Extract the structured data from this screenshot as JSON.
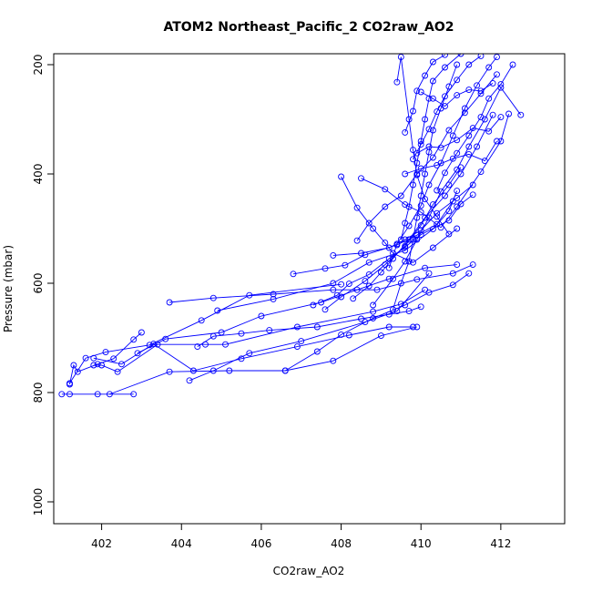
{
  "chart_data": {
    "type": "line",
    "title": "ATOM2 Northeast_Pacific_2 CO2raw_AO2",
    "xlabel": "CO2raw_AO2",
    "ylabel": "Pressure (mbar)",
    "xlim": [
      400.8,
      413.6
    ],
    "ylim": [
      1040,
      180
    ],
    "y_reversed": true,
    "xticks": [
      402,
      404,
      406,
      408,
      410,
      412
    ],
    "yticks": [
      200,
      400,
      600,
      800,
      1000
    ],
    "grid": false,
    "legend": "none",
    "marker": "open-circle",
    "colors": {
      "series": "#0000ff",
      "axis": "#000000",
      "background": "#ffffff"
    },
    "series": [
      {
        "points": [
          [
            401.0,
            803
          ],
          [
            401.2,
            803
          ],
          [
            401.9,
            803
          ],
          [
            402.8,
            803
          ]
        ]
      },
      {
        "points": [
          [
            401.2,
            785
          ],
          [
            401.3,
            750
          ],
          [
            401.4,
            762
          ],
          [
            401.9,
            748
          ],
          [
            402.3,
            738
          ],
          [
            402.8,
            703
          ],
          [
            403.0,
            690
          ]
        ]
      },
      {
        "points": [
          [
            401.2,
            783
          ],
          [
            401.6,
            737
          ],
          [
            402.1,
            726
          ],
          [
            403.2,
            713
          ],
          [
            404.5,
            668
          ],
          [
            405.7,
            622
          ],
          [
            408.0,
            602
          ]
        ]
      },
      {
        "points": [
          [
            401.8,
            750
          ],
          [
            402.0,
            750
          ],
          [
            402.4,
            762
          ],
          [
            403.4,
            712
          ],
          [
            404.6,
            712
          ],
          [
            405.1,
            712
          ],
          [
            406.9,
            680
          ],
          [
            408.8,
            652
          ],
          [
            409.5,
            638
          ],
          [
            410.1,
            612
          ]
        ]
      },
      {
        "points": [
          [
            401.8,
            737
          ],
          [
            402.5,
            748
          ],
          [
            403.3,
            711
          ],
          [
            404.3,
            760
          ],
          [
            405.5,
            738
          ],
          [
            406.9,
            716
          ],
          [
            408.2,
            695
          ],
          [
            409.2,
            680
          ],
          [
            409.8,
            680
          ]
        ]
      },
      {
        "points": [
          [
            402.2,
            803
          ],
          [
            403.7,
            762
          ],
          [
            405.2,
            760
          ],
          [
            406.6,
            760
          ],
          [
            407.8,
            742
          ],
          [
            409.0,
            696
          ],
          [
            409.9,
            680
          ]
        ]
      },
      {
        "points": [
          [
            402.9,
            728
          ],
          [
            403.6,
            702
          ],
          [
            405.0,
            690
          ],
          [
            406.0,
            660
          ],
          [
            407.5,
            635
          ],
          [
            408.4,
            612
          ],
          [
            409.2,
            592
          ],
          [
            410.1,
            572
          ],
          [
            410.9,
            566
          ]
        ]
      },
      {
        "points": [
          [
            403.7,
            635
          ],
          [
            404.8,
            627
          ],
          [
            406.3,
            620
          ],
          [
            407.8,
            612
          ],
          [
            408.9,
            612
          ],
          [
            409.9,
            593
          ],
          [
            410.8,
            582
          ],
          [
            411.3,
            566
          ]
        ]
      },
      {
        "points": [
          [
            404.2,
            778
          ],
          [
            404.8,
            760
          ],
          [
            405.7,
            728
          ],
          [
            407.0,
            706
          ],
          [
            408.6,
            671
          ],
          [
            409.4,
            651
          ],
          [
            410.2,
            582
          ]
        ]
      },
      {
        "points": [
          [
            404.4,
            716
          ],
          [
            404.8,
            697
          ],
          [
            405.5,
            692
          ],
          [
            406.2,
            686
          ],
          [
            407.4,
            680
          ],
          [
            408.5,
            665
          ],
          [
            409.2,
            657
          ],
          [
            409.7,
            651
          ],
          [
            410.0,
            643
          ]
        ]
      },
      {
        "points": [
          [
            404.9,
            650
          ],
          [
            406.3,
            629
          ],
          [
            407.8,
            600
          ],
          [
            408.7,
            562
          ],
          [
            409.6,
            540
          ],
          [
            410.3,
            501
          ],
          [
            410.7,
            468
          ],
          [
            410.9,
            431
          ]
        ]
      },
      {
        "points": [
          [
            406.6,
            760
          ],
          [
            407.4,
            725
          ],
          [
            408.0,
            694
          ],
          [
            408.8,
            664
          ],
          [
            409.6,
            640
          ],
          [
            410.2,
            617
          ],
          [
            410.8,
            603
          ],
          [
            411.2,
            582
          ]
        ]
      },
      {
        "points": [
          [
            406.8,
            583
          ],
          [
            407.6,
            573
          ],
          [
            408.1,
            567
          ],
          [
            408.6,
            548
          ],
          [
            409.4,
            530
          ],
          [
            409.9,
            512
          ],
          [
            410.4,
            492
          ],
          [
            410.8,
            450
          ]
        ]
      },
      {
        "points": [
          [
            407.3,
            640
          ],
          [
            407.9,
            622
          ],
          [
            408.2,
            601
          ],
          [
            408.7,
            584
          ],
          [
            409.2,
            555
          ],
          [
            409.6,
            534
          ],
          [
            410.0,
            511
          ],
          [
            410.7,
            485
          ],
          [
            411.0,
            455
          ],
          [
            411.3,
            438
          ]
        ]
      },
      {
        "points": [
          [
            407.6,
            648
          ],
          [
            408.0,
            625
          ],
          [
            408.6,
            596
          ],
          [
            409.1,
            566
          ],
          [
            409.6,
            532
          ],
          [
            410.0,
            494
          ],
          [
            410.3,
            456
          ],
          [
            410.7,
            420
          ],
          [
            411.0,
            388
          ]
        ]
      },
      {
        "points": [
          [
            407.8,
            549
          ],
          [
            408.5,
            545
          ],
          [
            409.2,
            535
          ],
          [
            409.6,
            520
          ],
          [
            410.0,
            503
          ],
          [
            410.4,
            472
          ],
          [
            410.9,
            444
          ],
          [
            411.3,
            420
          ]
        ]
      },
      {
        "points": [
          [
            408.0,
            405
          ],
          [
            408.4,
            462
          ],
          [
            408.8,
            500
          ],
          [
            409.1,
            526
          ],
          [
            409.3,
            545
          ],
          [
            409.8,
            562
          ],
          [
            410.3,
            535
          ],
          [
            410.9,
            500
          ]
        ]
      },
      {
        "points": [
          [
            408.3,
            628
          ],
          [
            408.7,
            605
          ],
          [
            409.0,
            580
          ],
          [
            409.3,
            555
          ],
          [
            409.7,
            520
          ],
          [
            410.1,
            480
          ],
          [
            410.6,
            440
          ],
          [
            411.0,
            400
          ],
          [
            411.4,
            350
          ],
          [
            411.8,
            292
          ]
        ]
      },
      {
        "points": [
          [
            408.4,
            522
          ],
          [
            408.7,
            490
          ],
          [
            409.1,
            460
          ],
          [
            409.5,
            440
          ],
          [
            409.9,
            400
          ],
          [
            410.3,
            370
          ],
          [
            410.7,
            320
          ],
          [
            411.1,
            288
          ],
          [
            411.5,
            253
          ],
          [
            411.9,
            218
          ]
        ]
      },
      {
        "points": [
          [
            408.5,
            408
          ],
          [
            409.1,
            428
          ],
          [
            409.6,
            456
          ],
          [
            410.0,
            470
          ],
          [
            410.5,
            498
          ],
          [
            410.9,
            460
          ],
          [
            411.5,
            396
          ],
          [
            412.0,
            340
          ],
          [
            412.2,
            290
          ]
        ]
      },
      {
        "points": [
          [
            408.8,
            640
          ],
          [
            409.3,
            592
          ],
          [
            409.6,
            560
          ],
          [
            409.9,
            520
          ],
          [
            410.2,
            480
          ],
          [
            410.5,
            432
          ],
          [
            410.9,
            392
          ],
          [
            411.2,
            350
          ],
          [
            411.6,
            300
          ],
          [
            412.0,
            242
          ],
          [
            412.5,
            292
          ]
        ]
      },
      {
        "points": [
          [
            409.2,
            572
          ],
          [
            409.4,
            528
          ],
          [
            409.7,
            495
          ],
          [
            410.0,
            458
          ],
          [
            410.2,
            420
          ],
          [
            410.5,
            380
          ],
          [
            410.8,
            330
          ],
          [
            411.1,
            280
          ],
          [
            411.4,
            238
          ],
          [
            411.7,
            205
          ],
          [
            411.9,
            186
          ]
        ]
      },
      {
        "points": [
          [
            409.3,
            648
          ],
          [
            409.5,
            600
          ],
          [
            409.7,
            560
          ],
          [
            409.8,
            520
          ],
          [
            409.9,
            480
          ],
          [
            410.0,
            440
          ],
          [
            410.1,
            400
          ],
          [
            410.2,
            360
          ],
          [
            410.3,
            320
          ],
          [
            410.5,
            280
          ],
          [
            410.7,
            240
          ],
          [
            410.9,
            200
          ]
        ]
      },
      {
        "points": [
          [
            409.5,
            520
          ],
          [
            409.6,
            490
          ],
          [
            409.7,
            460
          ],
          [
            409.8,
            420
          ],
          [
            409.9,
            380
          ],
          [
            410.0,
            340
          ],
          [
            410.1,
            300
          ],
          [
            410.2,
            262
          ],
          [
            410.3,
            230
          ],
          [
            410.6,
            205
          ],
          [
            411.0,
            180
          ]
        ]
      },
      {
        "points": [
          [
            409.4,
            232
          ],
          [
            409.5,
            186
          ],
          [
            409.7,
            300
          ],
          [
            409.8,
            356
          ],
          [
            409.9,
            402
          ],
          [
            410.1,
            446
          ],
          [
            410.4,
            478
          ],
          [
            410.7,
            510
          ]
        ]
      },
      {
        "points": [
          [
            409.6,
            324
          ],
          [
            409.8,
            285
          ],
          [
            409.9,
            248
          ],
          [
            410.1,
            220
          ],
          [
            410.3,
            195
          ],
          [
            410.6,
            182
          ]
        ]
      },
      {
        "points": [
          [
            409.8,
            373
          ],
          [
            410.0,
            346
          ],
          [
            410.2,
            318
          ],
          [
            410.4,
            286
          ],
          [
            410.6,
            258
          ],
          [
            410.9,
            228
          ],
          [
            411.2,
            200
          ],
          [
            411.5,
            184
          ]
        ]
      },
      {
        "points": [
          [
            410.4,
            430
          ],
          [
            410.6,
            398
          ],
          [
            410.9,
            362
          ],
          [
            411.2,
            330
          ],
          [
            411.5,
            296
          ],
          [
            411.7,
            262
          ],
          [
            412.0,
            236
          ],
          [
            412.3,
            200
          ]
        ]
      },
      {
        "points": [
          [
            410.0,
            250
          ],
          [
            410.3,
            262
          ],
          [
            410.6,
            276
          ],
          [
            410.9,
            256
          ],
          [
            411.2,
            246
          ],
          [
            411.5,
            248
          ],
          [
            411.8,
            234
          ]
        ]
      },
      {
        "points": [
          [
            409.9,
            362
          ],
          [
            410.2,
            350
          ],
          [
            410.5,
            352
          ],
          [
            410.9,
            338
          ],
          [
            411.3,
            316
          ],
          [
            411.7,
            322
          ],
          [
            412.0,
            296
          ]
        ]
      },
      {
        "points": [
          [
            409.6,
            400
          ],
          [
            410.0,
            390
          ],
          [
            410.4,
            384
          ],
          [
            410.8,
            372
          ],
          [
            411.2,
            364
          ],
          [
            411.6,
            376
          ],
          [
            411.9,
            340
          ]
        ]
      }
    ]
  }
}
